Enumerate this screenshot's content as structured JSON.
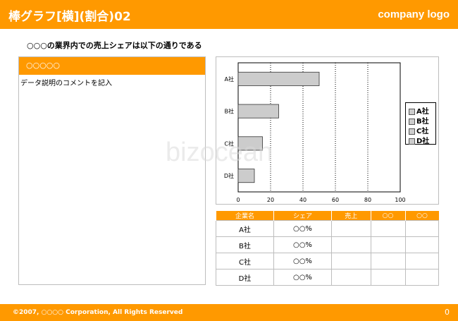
{
  "header": {
    "title": "棒グラフ[横](割合)02",
    "logo": "company logo"
  },
  "subtitle": "○○○の業界内での売上シェアは以下の通りである",
  "left_panel": {
    "heading": "○○○○○",
    "comment": "データ説明のコメントを記入"
  },
  "chart_data": {
    "type": "bar",
    "orientation": "horizontal",
    "categories": [
      "A社",
      "B社",
      "C社",
      "D社"
    ],
    "values": [
      50,
      25,
      15,
      10
    ],
    "xlim": [
      0,
      100
    ],
    "xticks": [
      "0",
      "20",
      "40",
      "60",
      "80",
      "100"
    ],
    "grid": "vertical dotted",
    "legend": {
      "position": "right",
      "entries": [
        "A社",
        "B社",
        "C社",
        "D社"
      ]
    },
    "bar_color": "#cccccc"
  },
  "table": {
    "headers": [
      "企業名",
      "シェア",
      "売上",
      "○○",
      "○○"
    ],
    "rows": [
      [
        "A社",
        "○○%",
        "",
        "",
        ""
      ],
      [
        "B社",
        "○○%",
        "",
        "",
        ""
      ],
      [
        "C社",
        "○○%",
        "",
        "",
        ""
      ],
      [
        "D社",
        "○○%",
        "",
        "",
        ""
      ]
    ]
  },
  "footer": {
    "copyright": "©2007, ○○○○ Corporation, All Rights Reserved",
    "page": "0"
  },
  "watermark": "bizocean",
  "colors": {
    "accent": "#ff9900"
  }
}
